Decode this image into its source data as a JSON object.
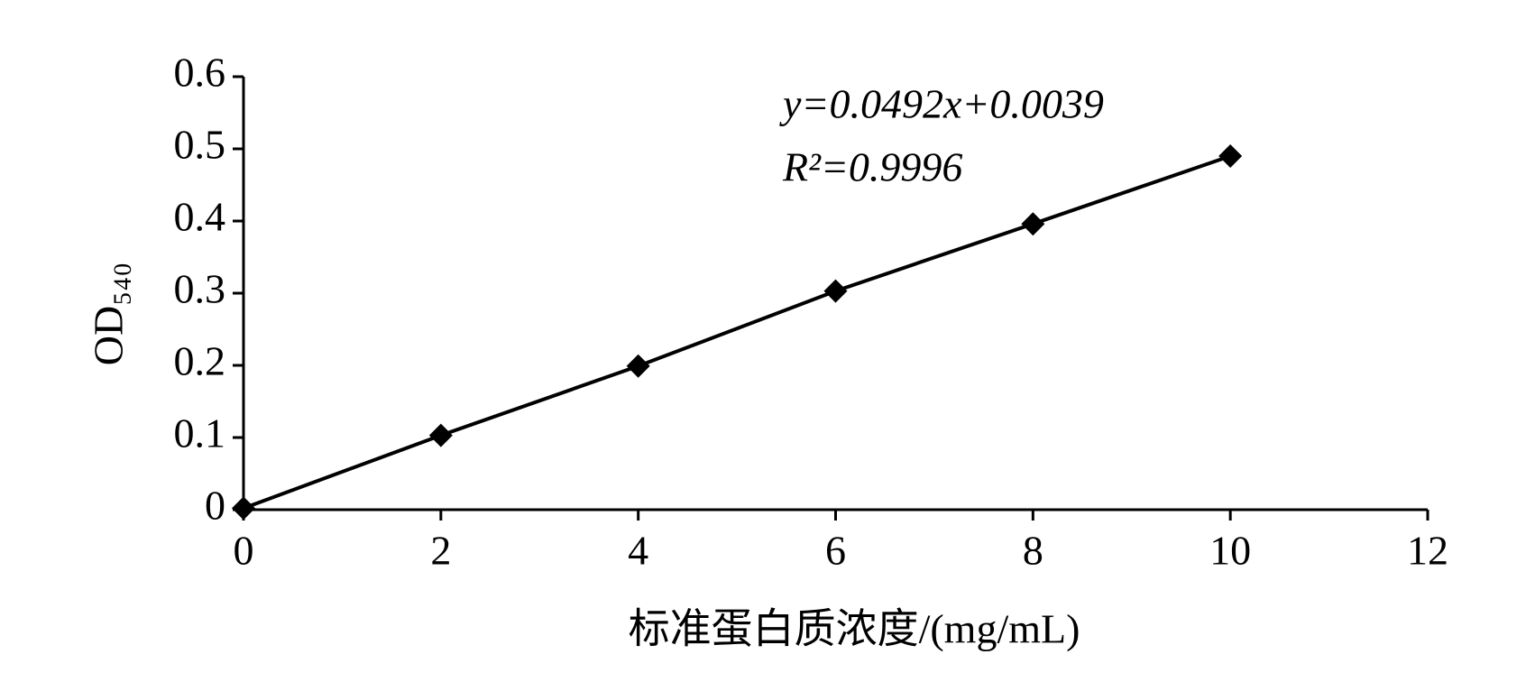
{
  "chart_data": {
    "type": "line",
    "xlabel": "标准蛋白质浓度/(mg/mL)",
    "ylabel": "OD₅₄₀",
    "annotations": [
      "y=0.0492x+0.0039",
      "R²=0.9996"
    ],
    "x": [
      0,
      2,
      4,
      6,
      8,
      10
    ],
    "series": [
      {
        "color": "#000000",
        "values": [
          0.002,
          0.103,
          0.199,
          0.303,
          0.396,
          0.49
        ]
      }
    ],
    "xlim": [
      0,
      12
    ],
    "xticks": [
      0,
      2,
      4,
      6,
      8,
      10,
      12
    ],
    "ylim": [
      0,
      0.6
    ],
    "yticks": [
      0,
      0.1,
      0.2,
      0.3,
      0.4,
      0.5,
      0.6
    ],
    "grid": false
  }
}
